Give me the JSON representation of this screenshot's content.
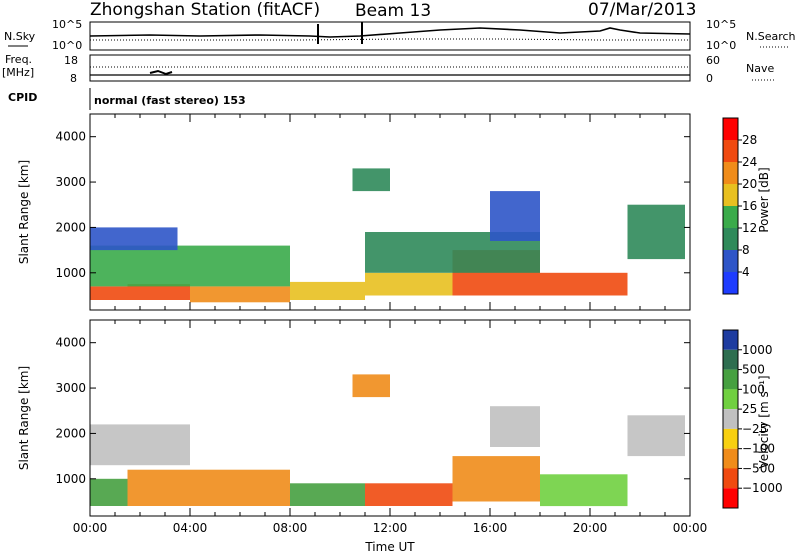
{
  "header": {
    "station": "Zhongshan Station (fitACF)",
    "beam": "Beam 13",
    "date": "07/Mar/2013"
  },
  "panels": {
    "sky": {
      "left_label": "N.Sky",
      "right_label": "N.Search",
      "left_ticks": [
        "10^5",
        "10^0"
      ],
      "right_ticks": [
        "10^5",
        "10^0"
      ]
    },
    "freq": {
      "left_label": "Freq.",
      "left_unit": "[MHz]",
      "right_label": "Nave",
      "left_ticks": [
        "18",
        "8"
      ],
      "right_ticks": [
        "60",
        "0"
      ]
    },
    "cpid": {
      "label": "CPID",
      "mode": "normal (fast stereo) 153"
    }
  },
  "chart_data": [
    {
      "type": "heatmap",
      "title": "",
      "xlabel": "",
      "ylabel": "Slant Range [km]",
      "xlim": [
        0,
        24
      ],
      "ylim": [
        180,
        4500
      ],
      "yticks": [
        "1000",
        "2000",
        "3000",
        "4000"
      ],
      "colorbar": {
        "label": "Power [dB]",
        "ticks": [
          "4",
          "8",
          "12",
          "16",
          "20",
          "24",
          "28"
        ],
        "colors": [
          "#1e3cff",
          "#2e55c8",
          "#2f8a5a",
          "#3aab4a",
          "#e8c020",
          "#f08c1a",
          "#f04a10",
          "#ff0000"
        ]
      },
      "patches": [
        {
          "t0": 0.0,
          "t1": 1.5,
          "r0": 400,
          "r1": 700,
          "value": 27
        },
        {
          "t0": 1.5,
          "t1": 4.0,
          "r0": 400,
          "r1": 750,
          "value": 24
        },
        {
          "t0": 4.0,
          "t1": 8.0,
          "r0": 350,
          "r1": 700,
          "value": 22
        },
        {
          "t0": 8.0,
          "t1": 11.0,
          "r0": 400,
          "r1": 800,
          "value": 18
        },
        {
          "t0": 11.0,
          "t1": 14.5,
          "r0": 500,
          "r1": 1000,
          "value": 16
        },
        {
          "t0": 14.5,
          "t1": 18.0,
          "r0": 500,
          "r1": 1500,
          "value": 26
        },
        {
          "t0": 18.0,
          "t1": 21.5,
          "r0": 500,
          "r1": 1000,
          "value": 25
        },
        {
          "t0": 0.0,
          "t1": 8.0,
          "r0": 700,
          "r1": 1600,
          "value": 12
        },
        {
          "t0": 11.0,
          "t1": 18.0,
          "r0": 1000,
          "r1": 1900,
          "value": 10
        },
        {
          "t0": 0.0,
          "t1": 3.5,
          "r0": 1500,
          "r1": 2000,
          "value": 7
        },
        {
          "t0": 10.5,
          "t1": 12.0,
          "r0": 2800,
          "r1": 3300,
          "value": 11
        },
        {
          "t0": 16.0,
          "t1": 18.0,
          "r0": 1700,
          "r1": 2800,
          "value": 7
        },
        {
          "t0": 21.5,
          "t1": 23.8,
          "r0": 1300,
          "r1": 2500,
          "value": 8
        }
      ]
    },
    {
      "type": "heatmap",
      "title": "",
      "xlabel": "Time UT",
      "ylabel": "Slant Range [km]",
      "xlim": [
        0,
        24
      ],
      "ylim": [
        180,
        4500
      ],
      "xticks": [
        "00:00",
        "04:00",
        "08:00",
        "12:00",
        "16:00",
        "20:00",
        "00:00"
      ],
      "yticks": [
        "1000",
        "2000",
        "3000",
        "4000"
      ],
      "colorbar": {
        "label": "Velocity [m s⁻¹]",
        "ticks": [
          "1000",
          "500",
          "100",
          "25",
          "−25",
          "−100",
          "−500",
          "−1000"
        ],
        "colors": [
          "#1e3ca0",
          "#2e6e50",
          "#46a040",
          "#70d040",
          "#c0c0c0",
          "#f8d010",
          "#f08c1a",
          "#f04a10",
          "#ff0000"
        ]
      },
      "patches": [
        {
          "t0": 0.0,
          "t1": 1.5,
          "r0": 400,
          "r1": 1000,
          "value": 150
        },
        {
          "t0": 1.5,
          "t1": 8.0,
          "r0": 400,
          "r1": 1200,
          "value": -300
        },
        {
          "t0": 8.0,
          "t1": 11.0,
          "r0": 400,
          "r1": 900,
          "value": 300
        },
        {
          "t0": 11.0,
          "t1": 14.5,
          "r0": 400,
          "r1": 900,
          "value": -800
        },
        {
          "t0": 14.5,
          "t1": 18.0,
          "r0": 500,
          "r1": 1500,
          "value": -400
        },
        {
          "t0": 18.0,
          "t1": 21.5,
          "r0": 400,
          "r1": 1100,
          "value": 60
        },
        {
          "t0": 0.0,
          "t1": 4.0,
          "r0": 1300,
          "r1": 2200,
          "value": 0
        },
        {
          "t0": 10.5,
          "t1": 12.0,
          "r0": 2800,
          "r1": 3300,
          "value": -400
        },
        {
          "t0": 16.0,
          "t1": 18.0,
          "r0": 1700,
          "r1": 2600,
          "value": 0
        },
        {
          "t0": 21.5,
          "t1": 23.8,
          "r0": 1500,
          "r1": 2400,
          "value": 0
        }
      ]
    }
  ],
  "colors": {
    "axis": "#000000",
    "background": "#ffffff",
    "trace": "#000000"
  }
}
